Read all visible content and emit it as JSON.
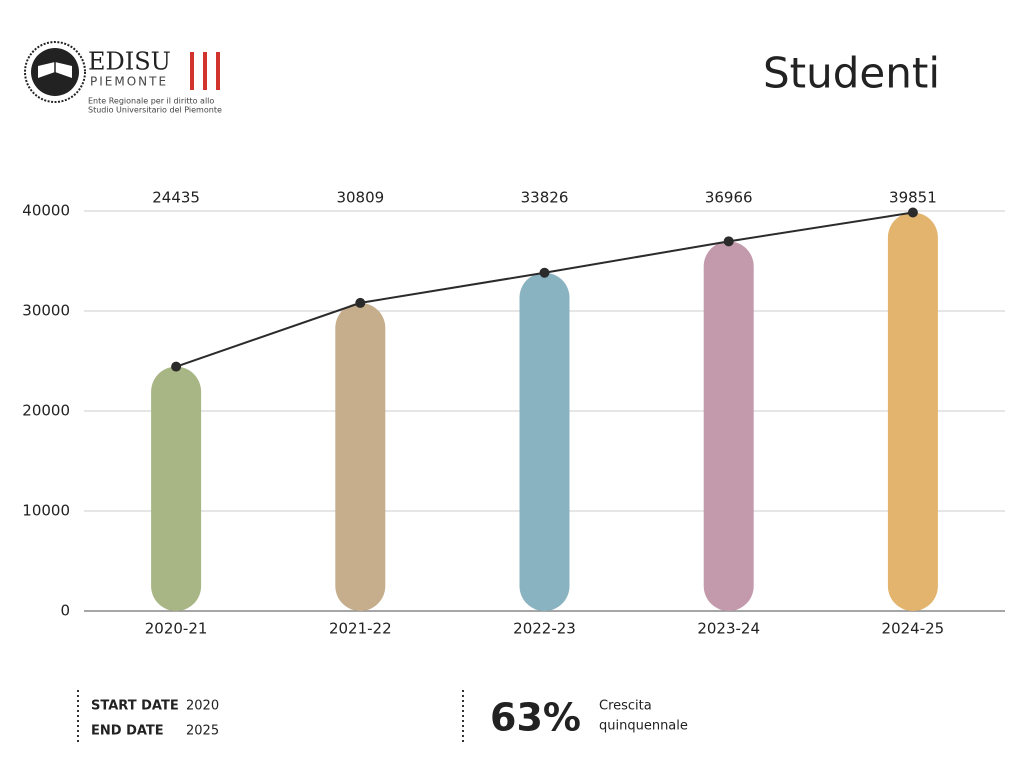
{
  "header": {
    "logo_name": "EDISU",
    "logo_sub": "PIEMONTE",
    "logo_tagline_1": "Ente Regionale per il diritto allo",
    "logo_tagline_2": "Studio Universitario del Piemonte"
  },
  "chart_data": {
    "type": "bar",
    "title": "Studenti",
    "categories": [
      "2020-21",
      "2021-22",
      "2022-23",
      "2023-24",
      "2024-25"
    ],
    "values": [
      24435,
      30809,
      33826,
      36966,
      39851
    ],
    "colors": [
      "#a8b585",
      "#c6ae8c",
      "#8ab3c1",
      "#c39aab",
      "#e2b46e"
    ],
    "line": true,
    "line_color": "#2b2b2b",
    "ylim": [
      0,
      40000
    ],
    "yticks": [
      0,
      10000,
      20000,
      30000,
      40000
    ],
    "grid": true
  },
  "footer": {
    "start_label": "START DATE",
    "start_value": "2020",
    "end_label": "END DATE",
    "end_value": "2025",
    "growth": "63%",
    "growth_label_1": "Crescita",
    "growth_label_2": "quinquennale"
  }
}
